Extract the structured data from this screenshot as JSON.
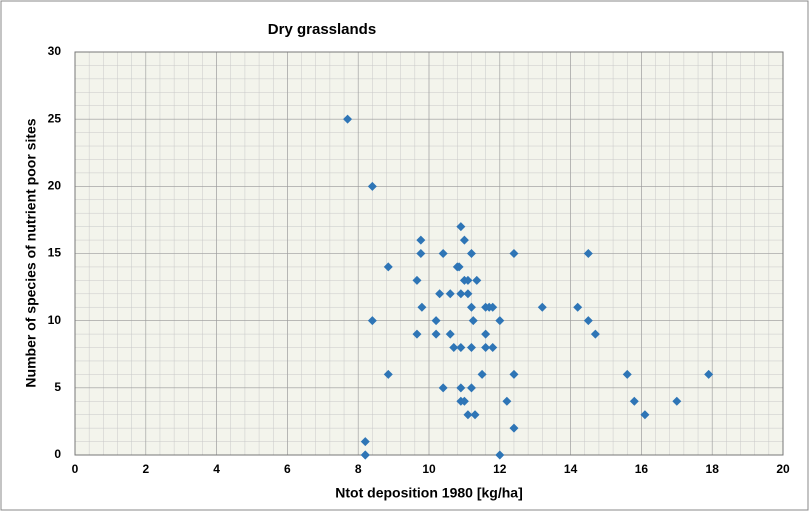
{
  "chart_data": {
    "type": "scatter",
    "title": "Dry grasslands",
    "x_label": "Ntot deposition 1980 [kg/ha]",
    "y_label": "Number of species of nutrient poor sites",
    "xlim": [
      0,
      20
    ],
    "xticks": [
      0,
      2,
      4,
      6,
      8,
      10,
      12,
      14,
      16,
      18,
      20
    ],
    "ylim": [
      0,
      30
    ],
    "yticks": [
      0,
      5,
      10,
      15,
      20,
      25,
      30
    ],
    "grid": true,
    "minor_grid_step": [
      0.4,
      1
    ],
    "series": [
      {
        "name": "Dry grasslands",
        "color": "#2e75b6",
        "x": [
          7.7,
          8.2,
          8.2,
          8.2,
          8.85,
          8.85,
          8.4,
          8.4,
          9.66,
          9.66,
          9.77,
          9.77,
          9.8,
          10.2,
          10.2,
          10.3,
          10.4,
          10.4,
          10.6,
          10.6,
          10.7,
          10.8,
          10.85,
          10.9,
          10.9,
          10.9,
          10.9,
          10.9,
          11.0,
          11.0,
          11.0,
          11.1,
          11.1,
          11.1,
          11.2,
          11.2,
          11.2,
          11.2,
          11.25,
          11.35,
          11.3,
          11.5,
          11.6,
          11.6,
          11.6,
          11.7,
          11.8,
          11.8,
          12.0,
          12.0,
          12.2,
          12.4,
          12.4,
          12.4,
          13.2,
          14.2,
          14.5,
          14.5,
          14.7,
          15.6,
          15.8,
          16.1,
          17.0,
          17.9
        ],
        "values": [
          25,
          1,
          0,
          0,
          14,
          6,
          20,
          10,
          13,
          9,
          16,
          15,
          11,
          10,
          9,
          12,
          15,
          5,
          12,
          9,
          8,
          14,
          14,
          12,
          17,
          8,
          5,
          4,
          4,
          16,
          13,
          12,
          3,
          13,
          5,
          8,
          11,
          15,
          10,
          13,
          3,
          6,
          11,
          9,
          8,
          11,
          11,
          8,
          10,
          0,
          4,
          15,
          6,
          2,
          11,
          11,
          15,
          10,
          9,
          6,
          4,
          3,
          4,
          6
        ]
      }
    ]
  }
}
